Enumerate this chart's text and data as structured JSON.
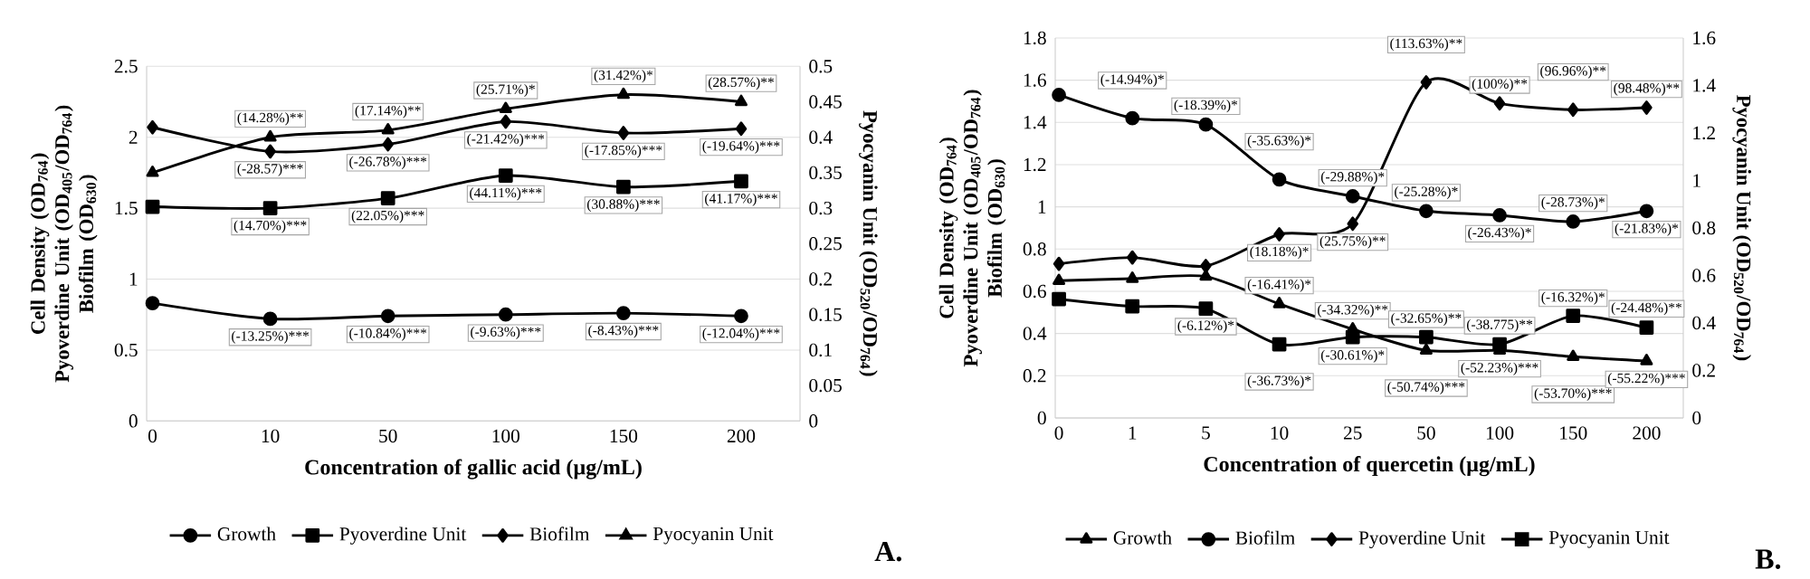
{
  "chart_data": [
    {
      "type": "line",
      "xlabel": "Concentration of gallic acid (µg/mL)",
      "ylabel": "Cell Density (OD$_{764}$)\nPyoverdine Unit (OD$_{405}$/OD$_{764}$)\nBiofilm (OD$_{630}$)",
      "y2label": "Pyocyanin Unit (OD$_{520}$/OD$_{764}$)",
      "categories": [
        "0",
        "10",
        "50",
        "100",
        "150",
        "200"
      ],
      "series": [
        {
          "name": "Growth",
          "color": "#000000",
          "marker": "circle",
          "values": [
            0.83,
            0.72,
            0.74,
            0.75,
            0.76,
            0.74
          ]
        },
        {
          "name": "Pyoverdine Unit",
          "color": "#000000",
          "marker": "square",
          "values": [
            1.51,
            1.5,
            1.57,
            1.73,
            1.65,
            1.69
          ]
        },
        {
          "name": "Biofilm",
          "color": "#000000",
          "marker": "diamond",
          "values": [
            2.07,
            1.9,
            1.95,
            2.11,
            2.03,
            2.06
          ]
        },
        {
          "name": "Pyocyanin Unit",
          "color": "#000000",
          "marker": "triangle",
          "axis": "y2",
          "values": [
            0.35,
            0.4,
            0.41,
            0.44,
            0.46,
            0.45
          ]
        }
      ],
      "ylim": [
        0,
        2.5
      ],
      "yticks": [
        0,
        0.5,
        1,
        1.5,
        2,
        2.5
      ],
      "y2lim": [
        0,
        0.5
      ],
      "y2ticks": [
        0,
        0.05,
        0.1,
        0.15,
        0.2,
        0.25,
        0.3,
        0.35,
        0.4,
        0.45,
        0.5
      ],
      "grid": "y",
      "legend": "bottom",
      "annotations": [
        {
          "text": "(14.28%)**",
          "x": "10",
          "y": 2.0
        },
        {
          "text": "(17.14%)**",
          "x": "50",
          "y": 2.05
        },
        {
          "text": "(25.71%)*",
          "x": "100",
          "y": 2.2
        },
        {
          "text": "(31.42%)*",
          "x": "150",
          "y": 2.3
        },
        {
          "text": "(28.57%)**",
          "x": "200",
          "y": 2.25
        },
        {
          "text": "(-28.57)***",
          "x": "10",
          "y": 1.9
        },
        {
          "text": "(-26.78%)***",
          "x": "50",
          "y": 1.95
        },
        {
          "text": "(-21.42%)***",
          "x": "100",
          "y": 2.11
        },
        {
          "text": "(-17.85%)***",
          "x": "150",
          "y": 2.03
        },
        {
          "text": "(-19.64%)***",
          "x": "200",
          "y": 2.06
        },
        {
          "text": "(14.70%)***",
          "x": "10",
          "y": 1.5
        },
        {
          "text": "(22.05%)***",
          "x": "50",
          "y": 1.57
        },
        {
          "text": "(44.11%)***",
          "x": "100",
          "y": 1.73
        },
        {
          "text": "(30.88%)***",
          "x": "150",
          "y": 1.65
        },
        {
          "text": "(41.17%)***",
          "x": "200",
          "y": 1.69
        },
        {
          "text": "(-13.25%)***",
          "x": "10",
          "y": 0.72
        },
        {
          "text": "(-10.84%)***",
          "x": "50",
          "y": 0.74
        },
        {
          "text": "(-9.63%)***",
          "x": "100",
          "y": 0.75
        },
        {
          "text": "(-8.43%)***",
          "x": "150",
          "y": 0.76
        },
        {
          "text": "(-12.04%)***",
          "x": "200",
          "y": 0.74
        },
        "A."
      ]
    },
    {
      "type": "line",
      "xlabel": "Concentration of quercetin (µg/mL)",
      "ylabel": "Cell Density (OD$_{764}$)\nPyoverdine Unit (OD$_{405}$/OD$_{764}$)\nBiofilm (OD$_{630}$)",
      "y2label": "Pyocyanin Unit (OD$_{520}$/OD$_{764}$)",
      "categories": [
        "0",
        "1",
        "5",
        "10",
        "25",
        "50",
        "100",
        "150",
        "200"
      ],
      "series": [
        {
          "name": "Growth",
          "color": "#000000",
          "marker": "triangle",
          "values": [
            0.65,
            0.66,
            0.67,
            0.54,
            0.42,
            0.32,
            0.32,
            0.29,
            0.27
          ]
        },
        {
          "name": "Biofilm",
          "color": "#000000",
          "marker": "circle",
          "values": [
            1.53,
            1.42,
            1.39,
            1.13,
            1.05,
            0.98,
            0.96,
            0.93,
            0.98
          ]
        },
        {
          "name": "Pyoverdine Unit",
          "color": "#000000",
          "marker": "diamond",
          "values": [
            0.73,
            0.76,
            0.72,
            0.87,
            0.92,
            1.59,
            1.49,
            1.46,
            1.47
          ]
        },
        {
          "name": "Pyocyanin Unit",
          "color": "#000000",
          "marker": "square",
          "axis": "y2",
          "values": [
            0.5,
            0.47,
            0.46,
            0.31,
            0.34,
            0.34,
            0.31,
            0.43,
            0.38
          ]
        }
      ],
      "ylim": [
        0,
        1.8
      ],
      "yticks": [
        0,
        0.2,
        0.4,
        0.6,
        0.8,
        1,
        1.2,
        1.4,
        1.6,
        1.8
      ],
      "y2lim": [
        0,
        1.6
      ],
      "y2ticks": [
        0,
        0.2,
        0.4,
        0.6,
        0.8,
        1,
        1.2,
        1.4,
        1.6
      ],
      "grid": "y",
      "legend": "bottom",
      "annotations": [
        {
          "text": "(-14.94%)*",
          "x": "1",
          "y": 1.42
        },
        {
          "text": "(-18.39%)*",
          "x": "5",
          "y": 1.39
        },
        {
          "text": "(-35.63%)*",
          "x": "10",
          "y": 1.13
        },
        {
          "text": "(-29.88%)*",
          "x": "25",
          "y": 1.05
        },
        {
          "text": "(18.18%)*",
          "x": "10",
          "y": 0.87
        },
        {
          "text": "(-16.41%)*",
          "x": "10",
          "y": 0.54
        },
        {
          "text": "(-34.32%)**",
          "x": "25",
          "y": 0.42
        },
        {
          "text": "(-6.12%)*",
          "x": "5",
          "y": 0.52
        },
        {
          "text": "(-36.73%)*",
          "x": "10",
          "y": 0.35
        },
        {
          "text": "(-30.61%)*",
          "x": "25",
          "y": 0.38
        },
        {
          "text": "(113.63%)**",
          "x": "50",
          "y": 1.59
        },
        {
          "text": "(100%)**",
          "x": "100",
          "y": 1.49
        },
        {
          "text": "(96.96%)**",
          "x": "150",
          "y": 1.46
        },
        {
          "text": "(98.48%)**",
          "x": "200",
          "y": 1.47
        },
        {
          "text": "(-25.28%)*",
          "x": "50",
          "y": 0.98
        },
        {
          "text": "(-26.43%)*",
          "x": "100",
          "y": 0.96
        },
        {
          "text": "(-28.73%)*",
          "x": "150",
          "y": 0.93
        },
        {
          "text": "(-21.83%)*",
          "x": "200",
          "y": 0.98
        },
        {
          "text": "(25.75%)**",
          "x": "25",
          "y": 0.92
        },
        {
          "text": "(-32.65%)**",
          "x": "50",
          "y": 0.38
        },
        {
          "text": "(-38.775)**",
          "x": "100",
          "y": 0.35
        },
        {
          "text": "(-16.32%)*",
          "x": "150",
          "y": 0.48
        },
        {
          "text": "(-24.48%)**",
          "x": "200",
          "y": 0.43
        },
        {
          "text": "(-52.23%)***",
          "x": "100",
          "y": 0.32
        },
        {
          "text": "(-50.74%)***",
          "x": "50",
          "y": 0.32
        },
        {
          "text": "(-53.70%)***",
          "x": "150",
          "y": 0.29
        },
        {
          "text": "(-55.22%)***",
          "x": "200",
          "y": 0.27
        },
        "B."
      ]
    }
  ]
}
